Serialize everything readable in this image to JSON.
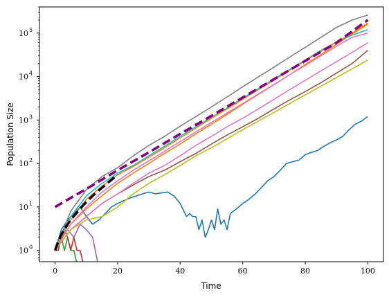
{
  "chart_data": {
    "type": "line",
    "title": "",
    "xlabel": "Time",
    "ylabel": "Population Size",
    "xlim": [
      -5,
      105
    ],
    "ylim": [
      0.55,
      400000
    ],
    "yscale": "log",
    "grid": false,
    "x_ticks": [
      0,
      20,
      40,
      60,
      80,
      100
    ],
    "y_ticks": [
      1,
      10,
      100,
      1000,
      10000,
      100000
    ],
    "y_tick_labels": [
      "10^0",
      "10^1",
      "10^2",
      "10^3",
      "10^4",
      "10^5"
    ],
    "series": [
      {
        "color": "#1f77b4",
        "style": "solid",
        "width": 1.6,
        "x": [
          0,
          2,
          4,
          6,
          8,
          10,
          12,
          14,
          16,
          18,
          20,
          22,
          24,
          26,
          28,
          30,
          32,
          34,
          36,
          38,
          40,
          42,
          43,
          44,
          45,
          46,
          47,
          48,
          49,
          50,
          51,
          52,
          53,
          54,
          55,
          56,
          57,
          58,
          60,
          62,
          64,
          66,
          68,
          70,
          72,
          74,
          76,
          78,
          80,
          82,
          84,
          86,
          88,
          90,
          92,
          94,
          96,
          98,
          100
        ],
        "y": [
          1,
          3,
          5,
          7,
          10,
          6,
          4,
          5,
          7,
          10,
          12,
          14,
          16,
          18,
          20,
          22,
          20,
          21,
          22,
          18,
          12,
          6,
          7,
          6,
          6,
          3,
          5,
          2,
          3,
          5,
          3,
          9,
          4,
          5,
          3,
          7,
          8,
          9,
          12,
          15,
          20,
          28,
          40,
          50,
          70,
          100,
          110,
          120,
          160,
          180,
          200,
          250,
          300,
          350,
          420,
          600,
          800,
          950,
          1200
        ]
      },
      {
        "color": "#ff7f0e",
        "style": "solid",
        "width": 1.6,
        "x": [
          0,
          5,
          10,
          15,
          20,
          25,
          30,
          35,
          40,
          45,
          50,
          55,
          60,
          65,
          70,
          75,
          80,
          85,
          90,
          95,
          100
        ],
        "y": [
          1,
          4,
          9,
          18,
          35,
          60,
          100,
          170,
          280,
          480,
          800,
          1350,
          2300,
          3900,
          6500,
          11000,
          19000,
          32000,
          55000,
          95000,
          160000
        ]
      },
      {
        "color": "#2ca02c",
        "style": "solid",
        "width": 1.6,
        "x": [
          0,
          1,
          2,
          3,
          4,
          5,
          6,
          7,
          8
        ],
        "y": [
          1,
          1,
          2,
          1,
          2,
          1,
          1,
          0.5,
          0.4
        ]
      },
      {
        "color": "#d62728",
        "style": "solid",
        "width": 1.6,
        "x": [
          0,
          1,
          2,
          3,
          4,
          5,
          6,
          7,
          8,
          9,
          10
        ],
        "y": [
          1,
          1,
          2,
          3,
          2,
          1,
          2,
          1,
          1,
          0.5,
          0.4
        ]
      },
      {
        "color": "#9467bd",
        "style": "solid",
        "width": 1.6,
        "x": [
          0,
          2,
          4,
          6,
          8,
          10,
          12,
          14
        ],
        "y": [
          1,
          2,
          3,
          2,
          4,
          3,
          2,
          0.4
        ]
      },
      {
        "color": "#8c564b",
        "style": "solid",
        "width": 1.6,
        "x": [
          0,
          5,
          10,
          15,
          20,
          25,
          30,
          35,
          40,
          45,
          50,
          55,
          60,
          65,
          70,
          75,
          80,
          85,
          90,
          95,
          100
        ],
        "y": [
          1,
          3,
          6,
          12,
          20,
          32,
          50,
          70,
          110,
          170,
          280,
          450,
          700,
          1100,
          1800,
          2900,
          4500,
          7200,
          12000,
          20000,
          40000
        ]
      },
      {
        "color": "#e377c2",
        "style": "solid",
        "width": 1.6,
        "x": [
          0,
          5,
          10,
          15,
          20,
          25,
          30,
          35,
          40,
          45,
          50,
          55,
          60,
          65,
          70,
          75,
          80,
          85,
          90,
          95,
          100
        ],
        "y": [
          1,
          3,
          6,
          12,
          20,
          35,
          60,
          90,
          150,
          260,
          420,
          700,
          1100,
          1800,
          3000,
          5000,
          8200,
          13500,
          22000,
          36000,
          60000
        ]
      },
      {
        "color": "#7f7f7f",
        "style": "solid",
        "width": 1.6,
        "x": [
          0,
          5,
          10,
          15,
          20,
          25,
          30,
          35,
          40,
          45,
          50,
          55,
          60,
          65,
          70,
          75,
          80,
          85,
          90,
          95,
          100
        ],
        "y": [
          1,
          8,
          25,
          50,
          80,
          150,
          260,
          420,
          720,
          1200,
          2000,
          3400,
          5800,
          9800,
          16500,
          28000,
          47000,
          80000,
          135000,
          200000,
          260000
        ]
      },
      {
        "color": "#bcbd22",
        "style": "solid",
        "width": 1.6,
        "x": [
          0,
          5,
          10,
          15,
          20,
          25,
          30,
          35,
          40,
          45,
          50,
          55,
          60,
          65,
          70,
          75,
          80,
          85,
          90,
          95,
          100
        ],
        "y": [
          1,
          3,
          5,
          6,
          10,
          20,
          35,
          55,
          90,
          150,
          230,
          370,
          600,
          950,
          1500,
          2400,
          3800,
          6000,
          9500,
          15000,
          24000
        ]
      },
      {
        "color": "#17becf",
        "style": "solid",
        "width": 1.6,
        "x": [
          0,
          5,
          10,
          15,
          20,
          25,
          30,
          35,
          40,
          45,
          50,
          55,
          60,
          65,
          70,
          75,
          80,
          85,
          90,
          95,
          100
        ],
        "y": [
          1,
          6,
          18,
          35,
          60,
          90,
          150,
          250,
          420,
          700,
          1150,
          1900,
          3200,
          5300,
          8800,
          14500,
          24000,
          40000,
          62000,
          90000,
          120000
        ]
      },
      {
        "color": "#ff7f0e",
        "style": "solid",
        "width": 1.6,
        "x": [
          0,
          5,
          10,
          15,
          20,
          25,
          30,
          35,
          40,
          45,
          50,
          55,
          60,
          65,
          70,
          75,
          80,
          85,
          90,
          95,
          100
        ],
        "y": [
          1,
          5,
          15,
          30,
          55,
          85,
          140,
          230,
          390,
          650,
          1100,
          1800,
          3000,
          5000,
          8300,
          14000,
          23000,
          38000,
          62000,
          100000,
          170000
        ]
      },
      {
        "color": "#e377c2",
        "style": "solid",
        "width": 1.6,
        "x": [
          0,
          5,
          10,
          15,
          20,
          25,
          30,
          35,
          40,
          45,
          50,
          55,
          60,
          65,
          70,
          75,
          80,
          85,
          90,
          95,
          100
        ],
        "y": [
          1,
          4,
          10,
          22,
          40,
          70,
          115,
          190,
          320,
          530,
          880,
          1450,
          2400,
          4000,
          6600,
          11000,
          18000,
          30000,
          50000,
          80000,
          100000
        ]
      },
      {
        "color": "#800080",
        "style": "dashed",
        "width": 3.6,
        "x": [
          0,
          10,
          20,
          30,
          40,
          50,
          60,
          70,
          80,
          90,
          100
        ],
        "y": [
          10,
          26,
          70,
          180,
          480,
          1250,
          3300,
          8700,
          23000,
          60000,
          200000
        ]
      },
      {
        "color": "#000000",
        "style": "dashed",
        "width": 3.6,
        "x": [
          0,
          1,
          2,
          3,
          4,
          5,
          6,
          7,
          8,
          9,
          10,
          12,
          14,
          16,
          18,
          20
        ],
        "y": [
          1,
          1.6,
          2.3,
          3.1,
          4,
          5,
          6.2,
          7.5,
          9,
          11,
          13,
          18,
          24,
          32,
          42,
          55
        ]
      }
    ]
  }
}
